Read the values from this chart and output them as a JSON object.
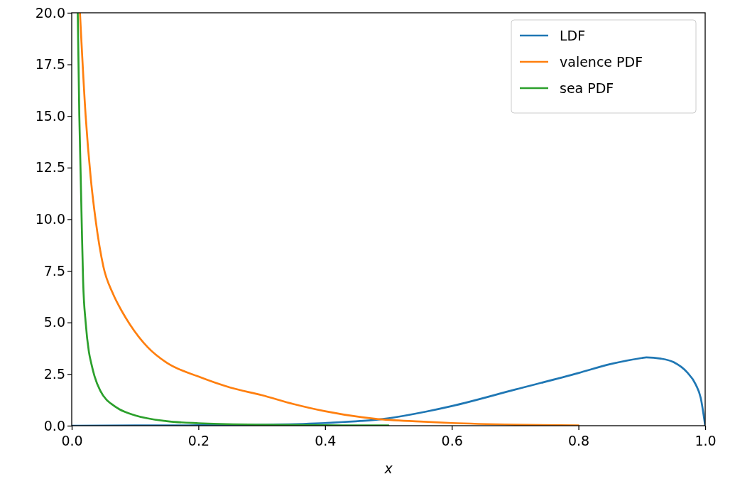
{
  "chart_data": {
    "type": "line",
    "xlabel": "x",
    "xlim": [
      0,
      1
    ],
    "ylim": [
      0,
      20
    ],
    "xticks": [
      {
        "value": 0,
        "label": "0.0"
      },
      0.2,
      0.4,
      0.6,
      0.8,
      {
        "value": 1,
        "label": "1.0"
      }
    ],
    "yticks": [
      {
        "value": 0,
        "label": "0.0"
      },
      2.5,
      {
        "value": 5,
        "label": "5.0"
      },
      7.5,
      {
        "value": 10,
        "label": "10.0"
      },
      12.5,
      {
        "value": 15,
        "label": "15.0"
      },
      17.5,
      {
        "value": 20,
        "label": "20.0"
      }
    ],
    "grid": false,
    "legend": "top right",
    "line_style": "solid",
    "marker": "none",
    "series": [
      {
        "name": "LDF",
        "color": "#1f77b4",
        "x": [
          0,
          0.1,
          0.2,
          0.3,
          0.4,
          0.5,
          0.559,
          0.6,
          0.7,
          0.8,
          0.85,
          0.9,
          0.907,
          0.93,
          0.95,
          0.971,
          0.985,
          0.993,
          1
        ],
        "values": [
          0,
          0.01,
          0.02,
          0.05,
          0.13,
          0.36,
          0.68,
          0.95,
          1.75,
          2.55,
          2.98,
          3.28,
          3.31,
          3.25,
          3.08,
          2.6,
          2.0,
          1.34,
          0
        ]
      },
      {
        "name": "valence PDF",
        "color": "#ff7f0e",
        "x": [
          0.013,
          0.022,
          0.03,
          0.038,
          0.05,
          0.065,
          0.08,
          0.092,
          0.12,
          0.15,
          0.2,
          0.25,
          0.3,
          0.35,
          0.4,
          0.48,
          0.55,
          0.6,
          0.7,
          0.8
        ],
        "values": [
          20,
          15,
          12,
          9.9,
          7.7,
          6.4,
          5.5,
          4.9,
          3.8,
          3.05,
          2.38,
          1.85,
          1.48,
          1.05,
          0.7,
          0.33,
          0.2,
          0.13,
          0.05,
          0.01
        ]
      },
      {
        "name": "sea PDF",
        "color": "#2ca02c",
        "x": [
          0.0095,
          0.012,
          0.014,
          0.016,
          0.018,
          0.022,
          0.027,
          0.031,
          0.036,
          0.045,
          0.055,
          0.062,
          0.075,
          0.1,
          0.15,
          0.2,
          0.3,
          0.4,
          0.5
        ],
        "values": [
          20,
          15,
          12.3,
          9.5,
          7.0,
          5.0,
          3.6,
          3.0,
          2.4,
          1.7,
          1.25,
          1.07,
          0.8,
          0.5,
          0.22,
          0.12,
          0.05,
          0.02,
          0.01
        ]
      }
    ]
  }
}
